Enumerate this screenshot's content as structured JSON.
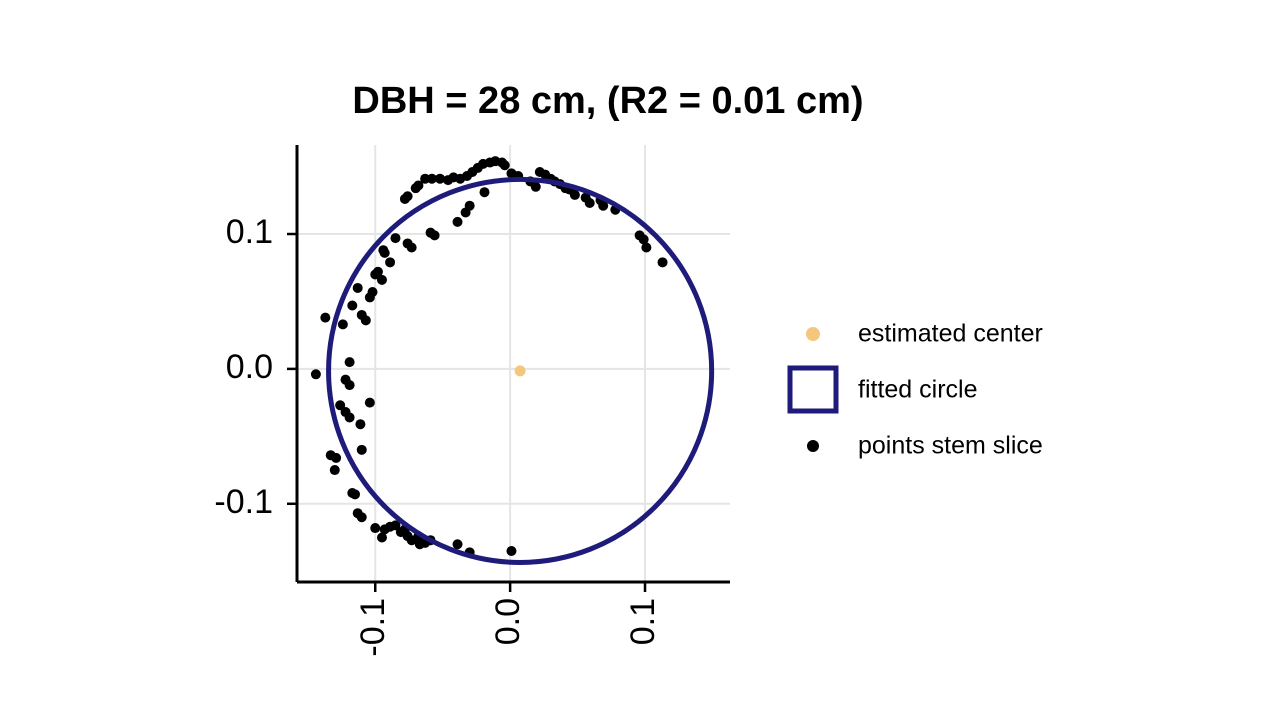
{
  "chart_data": {
    "type": "scatter",
    "title": "DBH = 28 cm, (R2 = 0.01 cm)",
    "xlim": [
      -0.158,
      0.163
    ],
    "ylim": [
      -0.158,
      0.166
    ],
    "xticks": [
      -0.1,
      {
        "value": 0,
        "label": "0.0"
      },
      0.1
    ],
    "yticks": [
      -0.1,
      {
        "value": 0,
        "label": "0.0"
      },
      0.1
    ],
    "grid": true,
    "legend": "right",
    "center": {
      "name": "estimated center",
      "color": "#f5c77e",
      "x": 0.0074,
      "y": -0.0015
    },
    "circle": {
      "name": "fitted circle",
      "color": "#1e1b7a",
      "cx": 0.0074,
      "cy": -0.0015,
      "r": 0.142
    },
    "points": {
      "name": "points stem slice",
      "color": "#000000",
      "x": [
        -0.078,
        -0.076,
        -0.07,
        -0.068,
        -0.063,
        -0.058,
        -0.052,
        -0.046,
        -0.042,
        -0.037,
        -0.032,
        -0.028,
        -0.024,
        -0.02,
        -0.015,
        -0.011,
        -0.006,
        -0.004,
        0.001,
        0.006,
        0.015,
        0.019,
        0.022,
        0.026,
        0.03,
        0.033,
        0.037,
        0.041,
        0.044,
        0.048,
        0.056,
        0.059,
        0.067,
        0.069,
        0.078,
        0.096,
        0.099,
        0.101,
        0.113,
        -0.019,
        -0.03,
        -0.033,
        -0.039,
        -0.056,
        -0.059,
        -0.073,
        -0.076,
        -0.085,
        -0.094,
        -0.089,
        -0.093,
        -0.098,
        -0.1,
        -0.095,
        -0.104,
        -0.102,
        -0.11,
        -0.107,
        -0.117,
        -0.113,
        -0.137,
        -0.124,
        -0.144,
        -0.119,
        -0.122,
        -0.119,
        -0.126,
        -0.122,
        -0.119,
        -0.111,
        -0.11,
        -0.104,
        -0.133,
        -0.129,
        -0.13,
        -0.117,
        -0.115,
        -0.113,
        -0.11,
        -0.1,
        -0.095,
        -0.093,
        -0.089,
        -0.085,
        -0.081,
        -0.078,
        -0.076,
        -0.073,
        -0.068,
        -0.067,
        -0.063,
        -0.059,
        -0.039,
        -0.03,
        0.001
      ],
      "y": [
        0.126,
        0.128,
        0.134,
        0.136,
        0.141,
        0.141,
        0.141,
        0.14,
        0.142,
        0.141,
        0.143,
        0.146,
        0.149,
        0.152,
        0.153,
        0.154,
        0.153,
        0.151,
        0.145,
        0.143,
        0.139,
        0.135,
        0.146,
        0.144,
        0.141,
        0.139,
        0.137,
        0.134,
        0.133,
        0.129,
        0.127,
        0.123,
        0.125,
        0.121,
        0.118,
        0.099,
        0.096,
        0.09,
        0.079,
        0.131,
        0.121,
        0.116,
        0.109,
        0.099,
        0.101,
        0.09,
        0.093,
        0.097,
        0.088,
        0.079,
        0.086,
        0.072,
        0.07,
        0.066,
        0.053,
        0.057,
        0.04,
        0.036,
        0.047,
        0.06,
        0.038,
        0.033,
        -0.004,
        0.005,
        -0.008,
        -0.012,
        -0.027,
        -0.032,
        -0.036,
        -0.041,
        -0.06,
        -0.025,
        -0.064,
        -0.066,
        -0.075,
        -0.092,
        -0.093,
        -0.107,
        -0.11,
        -0.118,
        -0.125,
        -0.119,
        -0.117,
        -0.116,
        -0.121,
        -0.119,
        -0.124,
        -0.127,
        -0.124,
        -0.13,
        -0.129,
        -0.127,
        -0.13,
        -0.136,
        -0.135
      ]
    }
  }
}
